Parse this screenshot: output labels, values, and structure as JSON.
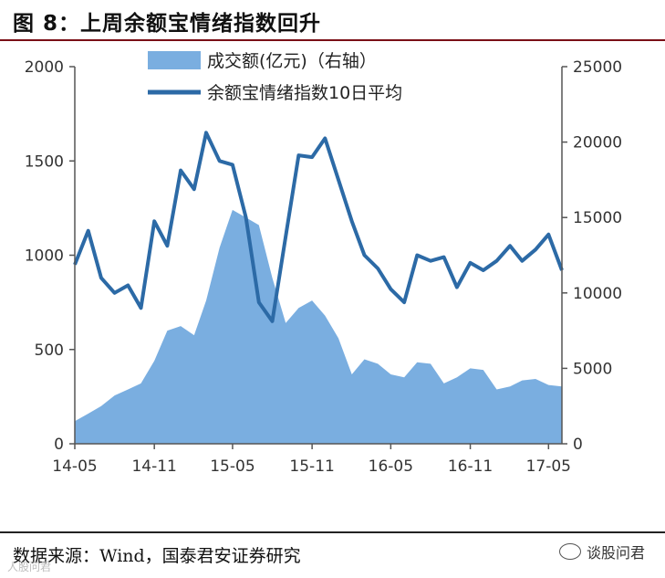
{
  "header": {
    "title": "图 8：上周余额宝情绪指数回升"
  },
  "footer": {
    "source": "数据来源：Wind，国泰君安证券研究",
    "badge": "谈股问君",
    "watermark": "人股问君"
  },
  "chart_data": {
    "type": "line",
    "title": "上周余额宝情绪指数回升",
    "x_ticks": [
      "14-05",
      "14-11",
      "15-05",
      "15-11",
      "16-05",
      "16-11",
      "17-05"
    ],
    "left_axis": {
      "ticks": [
        0,
        500,
        1000,
        1500,
        2000
      ],
      "ylim": [
        0,
        2000
      ]
    },
    "right_axis": {
      "ticks": [
        0,
        5000,
        10000,
        15000,
        20000,
        25000
      ],
      "ylim": [
        0,
        25000
      ]
    },
    "legend_placement": "top-center",
    "colors": {
      "volume": "#7aaee0",
      "index": "#2c6aa6"
    },
    "series": [
      {
        "name": "成交额(亿元)（右轴）",
        "type": "area",
        "axis": "right",
        "x": [
          "2014-05",
          "2014-06",
          "2014-07",
          "2014-08",
          "2014-09",
          "2014-10",
          "2014-11",
          "2014-12",
          "2015-01",
          "2015-02",
          "2015-03",
          "2015-04",
          "2015-05",
          "2015-06",
          "2015-07",
          "2015-08",
          "2015-09",
          "2015-10",
          "2015-11",
          "2015-12",
          "2016-01",
          "2016-02",
          "2016-03",
          "2016-04",
          "2016-05",
          "2016-06",
          "2016-07",
          "2016-08",
          "2016-09",
          "2016-10",
          "2016-11",
          "2016-12",
          "2017-01",
          "2017-02",
          "2017-03",
          "2017-04",
          "2017-05",
          "2017-06"
        ],
        "values": [
          1500,
          2000,
          2500,
          3200,
          3600,
          4000,
          5500,
          7500,
          7800,
          7200,
          9500,
          13000,
          15500,
          15000,
          14500,
          11000,
          8000,
          9000,
          9500,
          8500,
          7000,
          4600,
          5600,
          5300,
          4600,
          4400,
          5400,
          5300,
          4000,
          4400,
          5000,
          4900,
          3600,
          3800,
          4200,
          4300,
          3900,
          3800
        ]
      },
      {
        "name": "余额宝情绪指数10日平均",
        "type": "line",
        "axis": "left",
        "x": [
          "2014-05",
          "2014-06",
          "2014-07",
          "2014-08",
          "2014-09",
          "2014-10",
          "2014-11",
          "2014-12",
          "2015-01",
          "2015-02",
          "2015-03",
          "2015-04",
          "2015-05",
          "2015-06",
          "2015-07",
          "2015-08",
          "2015-09",
          "2015-10",
          "2015-11",
          "2015-12",
          "2016-01",
          "2016-02",
          "2016-03",
          "2016-04",
          "2016-05",
          "2016-06",
          "2016-07",
          "2016-08",
          "2016-09",
          "2016-10",
          "2016-11",
          "2016-12",
          "2017-01",
          "2017-02",
          "2017-03",
          "2017-04",
          "2017-05",
          "2017-06"
        ],
        "values": [
          950,
          1130,
          880,
          800,
          840,
          720,
          1180,
          1050,
          1450,
          1350,
          1650,
          1500,
          1480,
          1200,
          750,
          650,
          1100,
          1530,
          1520,
          1620,
          1400,
          1180,
          1000,
          930,
          820,
          750,
          1000,
          970,
          990,
          830,
          960,
          920,
          970,
          1050,
          970,
          1030,
          1110,
          920
        ]
      }
    ]
  }
}
